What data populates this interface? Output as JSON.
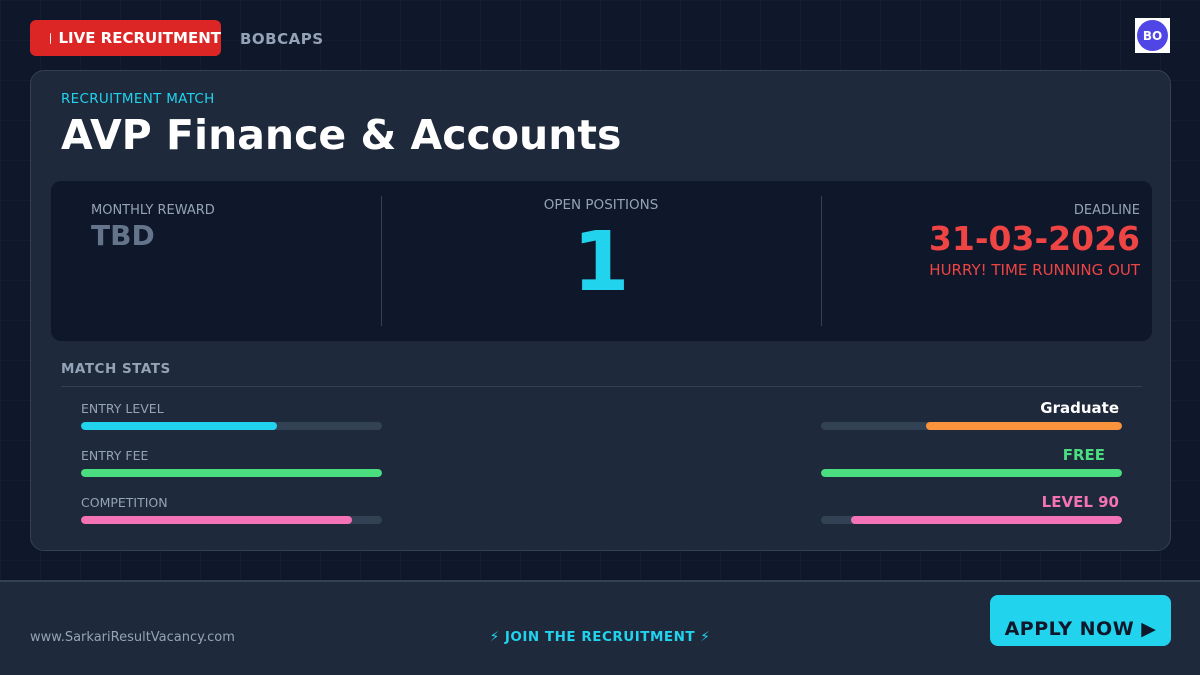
{
  "header": {
    "live_label": "LIVE RECRUITMENT",
    "brand": "BOBCAPS",
    "avatar_initials": "BO"
  },
  "card": {
    "kicker": "RECRUITMENT MATCH",
    "title": "AVP Finance & Accounts",
    "reward_label": "MONTHLY REWARD",
    "reward_value": "TBD",
    "open_label": "OPEN POSITIONS",
    "open_value": "1",
    "deadline_label": "DEADLINE",
    "deadline_value": "31-03-2026",
    "deadline_note": "HURRY! TIME RUNNING OUT"
  },
  "match": {
    "title": "MATCH STATS",
    "stats": [
      {
        "label": "ENTRY LEVEL",
        "value": "Graduate",
        "value_color": "#ffffff",
        "left_color": "#22d3ee",
        "left_fill": 0.65,
        "right_color": "#fb923c",
        "right_fill": 0.65
      },
      {
        "label": "ENTRY FEE",
        "value": "FREE",
        "value_color": "#4ade80",
        "left_color": "#4ade80",
        "left_fill": 1.0,
        "right_color": "#4ade80",
        "right_fill": 1.0
      },
      {
        "label": "COMPETITION",
        "value": "LEVEL 90",
        "value_color": "#f472b6",
        "left_color": "#f472b6",
        "left_fill": 0.9,
        "right_color": "#f472b6",
        "right_fill": 0.9
      }
    ]
  },
  "footer": {
    "site": "www.SarkariResultVacancy.com",
    "join": "⚡ JOIN THE RECRUITMENT ⚡",
    "apply": "APPLY NOW ▶"
  },
  "colors": {
    "background": "#0f172a",
    "card": "#1e293b",
    "accent": "#22d3ee",
    "live": "#dc2626",
    "deadline": "#ef4444"
  },
  "icons": {
    "live": "live-dot-icon"
  }
}
